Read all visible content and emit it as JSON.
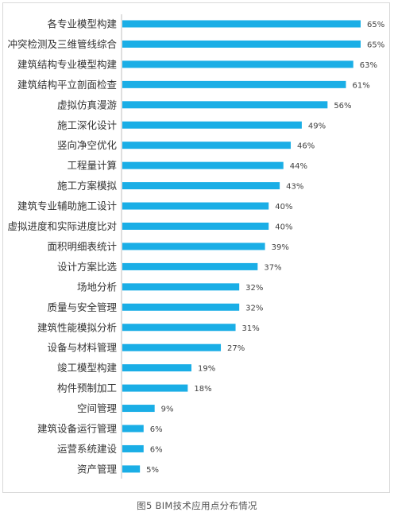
{
  "caption": "图5  BIM技术应用点分布情况",
  "colors": {
    "bar": "#1aaee6",
    "axis": "#bfbfbf",
    "label_text": "#333333",
    "value_text": "#404040"
  },
  "chart_data": {
    "type": "bar",
    "orientation": "horizontal",
    "title": "",
    "xlabel": "",
    "ylabel": "",
    "grid": false,
    "xlim": [
      0,
      65
    ],
    "value_suffix": "%",
    "categories": [
      "各专业模型构建",
      "冲突检测及三维管线综合",
      "建筑结构专业模型构建",
      "建筑结构平立剖面检查",
      "虚拟仿真漫游",
      "施工深化设计",
      "竖向净空优化",
      "工程量计算",
      "施工方案模拟",
      "建筑专业辅助施工设计",
      "虚拟进度和实际进度比对",
      "面积明细表统计",
      "设计方案比选",
      "场地分析",
      "质量与安全管理",
      "建筑性能模拟分析",
      "设备与材料管理",
      "竣工模型构建",
      "构件预制加工",
      "空间管理",
      "建筑设备运行管理",
      "运营系统建设",
      "资产管理"
    ],
    "values": [
      65,
      65,
      63,
      61,
      56,
      49,
      46,
      44,
      43,
      40,
      40,
      39,
      37,
      32,
      32,
      31,
      27,
      19,
      18,
      9,
      6,
      6,
      5
    ]
  }
}
